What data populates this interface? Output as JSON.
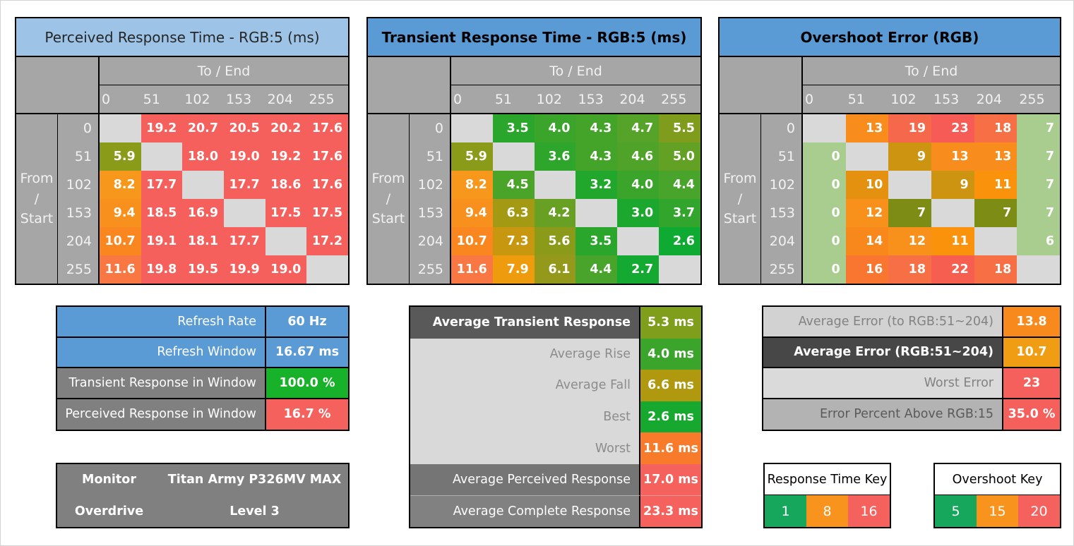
{
  "chart_data": [
    {
      "id": "perceived",
      "type": "heatmap",
      "title": "Perceived Response Time - RGB:5 (ms)",
      "title_bg": "#9dc3e6",
      "title_color": "#262626",
      "title_bold": false,
      "x_group_label": "To / End",
      "y_group_label": "From / Start",
      "y_label_lines": [
        "From",
        "/",
        "Start"
      ],
      "x": [
        0,
        51,
        102,
        153,
        204,
        255
      ],
      "y": [
        0,
        51,
        102,
        153,
        204,
        255
      ],
      "decimals": 1,
      "na_bg": "#d9d9d9",
      "values": [
        [
          null,
          19.2,
          20.7,
          20.5,
          20.2,
          17.6
        ],
        [
          5.9,
          null,
          18.0,
          19.0,
          19.2,
          17.6
        ],
        [
          8.2,
          17.7,
          null,
          17.7,
          18.6,
          17.6
        ],
        [
          9.4,
          18.5,
          16.9,
          null,
          17.5,
          17.5
        ],
        [
          10.7,
          19.1,
          18.1,
          17.7,
          null,
          17.2
        ],
        [
          11.6,
          19.8,
          19.5,
          19.9,
          19.0,
          null
        ]
      ],
      "cell_colors": [
        [
          null,
          "#f5605c",
          "#f5605c",
          "#f5605c",
          "#f5605c",
          "#f5605c"
        ],
        [
          "#8a9a19",
          null,
          "#f5605c",
          "#f5605c",
          "#f5605c",
          "#f5605c"
        ],
        [
          "#f7971c",
          "#f5605c",
          null,
          "#f5605c",
          "#f5605c",
          "#f5605c"
        ],
        [
          "#f8901d",
          "#f5605c",
          "#f5605c",
          null,
          "#f5605c",
          "#f5605c"
        ],
        [
          "#f9861e",
          "#f5605c",
          "#f5605c",
          "#f5605c",
          null,
          "#f5605c"
        ],
        [
          "#f87742",
          "#f5605c",
          "#f5605c",
          "#f5605c",
          "#f5605c",
          null
        ]
      ]
    },
    {
      "id": "transient",
      "type": "heatmap",
      "title": "Transient Response Time - RGB:5 (ms)",
      "title_bg": "#5b9bd5",
      "title_color": "#000000",
      "title_bold": true,
      "x_group_label": "To / End",
      "y_group_label": "From / Start",
      "y_label_lines": [
        "From",
        "/",
        "Start"
      ],
      "x": [
        0,
        51,
        102,
        153,
        204,
        255
      ],
      "y": [
        0,
        51,
        102,
        153,
        204,
        255
      ],
      "decimals": 1,
      "na_bg": "#d9d9d9",
      "values": [
        [
          null,
          3.5,
          4.0,
          4.3,
          4.7,
          5.5
        ],
        [
          5.9,
          null,
          3.6,
          4.3,
          4.6,
          5.0
        ],
        [
          8.2,
          4.5,
          null,
          3.2,
          4.0,
          4.4
        ],
        [
          9.4,
          6.3,
          4.2,
          null,
          3.0,
          3.7
        ],
        [
          10.7,
          7.3,
          5.6,
          3.5,
          null,
          2.6
        ],
        [
          11.6,
          7.9,
          6.1,
          4.4,
          2.7,
          null
        ]
      ],
      "cell_colors": [
        [
          null,
          "#2ba62c",
          "#3aa42b",
          "#44a42a",
          "#55a328",
          "#7f9c1c"
        ],
        [
          "#8a9a19",
          null,
          "#2ea62c",
          "#44a42a",
          "#50a329",
          "#63a124"
        ],
        [
          "#f7971c",
          "#4ba42a",
          null,
          "#22a72d",
          "#3aa42b",
          "#48a42a"
        ],
        [
          "#f8901d",
          "#a49913",
          "#68a023",
          null,
          "#1ca72e",
          "#31a52c"
        ],
        [
          "#f9861e",
          "#c7980f",
          "#8c9a19",
          "#2ba62c",
          null,
          "#0faa31"
        ],
        [
          "#f87742",
          "#ee9b0d",
          "#95991b",
          "#48a42a",
          "#14a930",
          null
        ]
      ]
    },
    {
      "id": "overshoot",
      "type": "heatmap",
      "title": "Overshoot Error (RGB)",
      "title_bg": "#5b9bd5",
      "title_color": "#000000",
      "title_bold": true,
      "x_group_label": "To / End",
      "y_group_label": "From / Start",
      "y_label_lines": [
        "From",
        "/",
        "Start"
      ],
      "x": [
        0,
        51,
        102,
        153,
        204,
        255
      ],
      "y": [
        0,
        51,
        102,
        153,
        204,
        255
      ],
      "decimals": 0,
      "na_bg": "#d9d9d9",
      "values": [
        [
          null,
          13,
          19,
          23,
          18,
          7
        ],
        [
          0,
          null,
          9,
          13,
          13,
          7
        ],
        [
          0,
          10,
          null,
          9,
          11,
          7
        ],
        [
          0,
          12,
          7,
          null,
          7,
          7
        ],
        [
          0,
          14,
          12,
          11,
          null,
          6
        ],
        [
          0,
          16,
          18,
          22,
          18,
          null
        ]
      ],
      "cell_colors": [
        [
          null,
          "#f88d1e",
          "#f6684b",
          "#f65c55",
          "#f76f44",
          "#a8cd8e"
        ],
        [
          "#a8cd8e",
          null,
          "#cc9410",
          "#f88d1e",
          "#f88d1e",
          "#a8cd8e"
        ],
        [
          "#a8cd8e",
          "#e59110",
          null,
          "#cc9410",
          "#fa920c",
          "#a8cd8e"
        ],
        [
          "#a8cd8e",
          "#f8911b",
          "#7d8c15",
          null,
          "#7d8c15",
          "#a8cd8e"
        ],
        [
          "#a8cd8e",
          "#f8871c",
          "#f8911b",
          "#fa920c",
          null,
          "#a8cd8e"
        ],
        [
          "#a8cd8e",
          "#f87630",
          "#f76f44",
          "#f65f50",
          "#f76f44",
          null
        ]
      ]
    }
  ],
  "refresh_summary": {
    "rows": [
      {
        "label": "Refresh Rate",
        "value": "60 Hz",
        "label_bg": "#5b9bd5",
        "label_color": "#ffffff",
        "value_bg": "#5b9bd5"
      },
      {
        "label": "Refresh Window",
        "value": "16.67 ms",
        "label_bg": "#5b9bd5",
        "label_color": "#ffffff",
        "value_bg": "#5b9bd5"
      },
      {
        "label": "Transient Response in Window",
        "value": "100.0 %",
        "label_bg": "#808080",
        "label_color": "#ffffff",
        "value_bg": "#17b22a"
      },
      {
        "label": "Perceived Response in Window",
        "value": "16.7 %",
        "label_bg": "#808080",
        "label_color": "#ffffff",
        "value_bg": "#f5615c"
      }
    ]
  },
  "transient_summary": {
    "rows": [
      {
        "label": "Average Transient Response",
        "value": "5.3 ms",
        "label_bg": "#595959",
        "label_color": "#ffffff",
        "label_bold": true,
        "value_bg": "#7f9e1b"
      },
      {
        "label": "Average Rise",
        "value": "4.0 ms",
        "label_bg": "#d9d9d9",
        "label_color": "#8c8c8c",
        "value_bg": "#3aa42b"
      },
      {
        "label": "Average Fall",
        "value": "6.6 ms",
        "label_bg": "#d9d9d9",
        "label_color": "#8c8c8c",
        "value_bg": "#b0990f"
      },
      {
        "label": "Best",
        "value": "2.6 ms",
        "label_bg": "#d9d9d9",
        "label_color": "#8c8c8c",
        "value_bg": "#16a82f"
      },
      {
        "label": "Worst",
        "value": "11.6 ms",
        "label_bg": "#d9d9d9",
        "label_color": "#8c8c8c",
        "value_bg": "#f87b2c"
      },
      {
        "label": "Average Perceived Response",
        "value": "17.0 ms",
        "label_bg": "#757575",
        "label_color": "#ffffff",
        "value_bg": "#f5615c"
      },
      {
        "label": "Average Complete Response",
        "value": "23.3 ms",
        "label_bg": "#818181",
        "label_color": "#ffffff",
        "value_bg": "#f5615c"
      }
    ]
  },
  "overshoot_summary": {
    "rows": [
      {
        "label": "Average Error (to RGB:51~204)",
        "value": "13.8",
        "label_bg": "#d2d2d2",
        "label_color": "#828282",
        "value_bg": "#f8891d"
      },
      {
        "label": "Average Error (RGB:51~204)",
        "value": "10.7",
        "label_bg": "#474747",
        "label_color": "#ffffff",
        "label_bold": true,
        "value_bg": "#f09d13"
      },
      {
        "label": "Worst Error",
        "value": "23",
        "label_bg": "#dadada",
        "label_color": "#828282",
        "value_bg": "#f5605c"
      },
      {
        "label": "Error Percent Above RGB:15",
        "value": "35.0 %",
        "label_bg": "#b3b3b3",
        "label_color": "#5a5a5a",
        "value_bg": "#f5605c"
      }
    ]
  },
  "monitor_info": {
    "rows": [
      {
        "label": "Monitor",
        "value": "Titan Army P326MV MAX",
        "label_bg": "#808080",
        "label_color": "#ffffff",
        "label_bold": true,
        "value_bg": "#808080"
      },
      {
        "label": "Overdrive",
        "value": "Level 3",
        "label_bg": "#808080",
        "label_color": "#ffffff",
        "label_bold": true,
        "value_bg": "#808080"
      }
    ]
  },
  "keys": [
    {
      "id": "response-time",
      "title": "Response Time Key",
      "cells": [
        {
          "v": "1",
          "c": "#16a75c"
        },
        {
          "v": "8",
          "c": "#f8941d"
        },
        {
          "v": "16",
          "c": "#f5615c"
        }
      ]
    },
    {
      "id": "overshoot",
      "title": "Overshoot Key",
      "cells": [
        {
          "v": "5",
          "c": "#16a75c"
        },
        {
          "v": "15",
          "c": "#f8941d"
        },
        {
          "v": "20",
          "c": "#f5615c"
        }
      ]
    }
  ]
}
